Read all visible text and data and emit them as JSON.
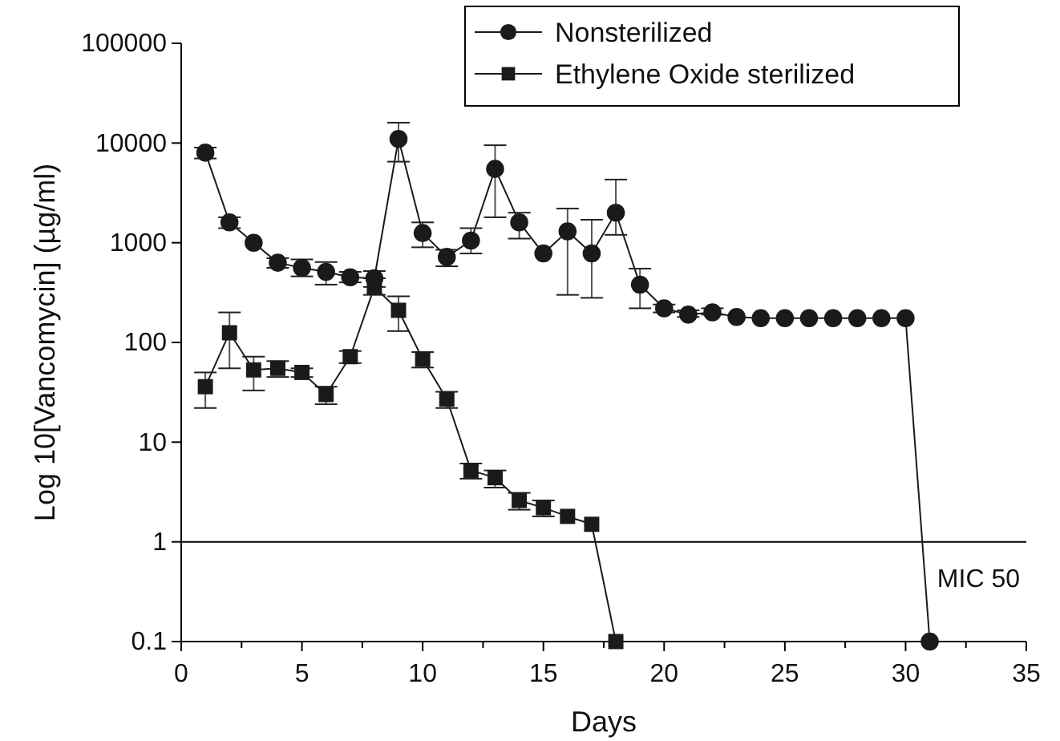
{
  "chart_data": {
    "type": "line",
    "xlabel": "Days",
    "ylabel": "Log 10[Vancomycin] (µg/ml)",
    "log": "y",
    "xlim": [
      0,
      35
    ],
    "xticks": [
      0,
      5,
      10,
      15,
      20,
      25,
      30,
      35
    ],
    "ylim": [
      0.1,
      100000
    ],
    "yticks": [
      0.1,
      1,
      10,
      100,
      1000,
      10000,
      100000
    ],
    "legend": "top right",
    "grid": false,
    "ref_lines": [
      {
        "axis": "y",
        "value": 1,
        "label": "MIC 50",
        "color": "#000000"
      }
    ],
    "series": [
      {
        "name": "Nonsterilized",
        "color": "#1a1a1a",
        "marker": "circle",
        "x": [
          1,
          2,
          3,
          4,
          5,
          6,
          7,
          8,
          9,
          10,
          11,
          12,
          13,
          14,
          15,
          16,
          17,
          18,
          19,
          20,
          21,
          22,
          23,
          24,
          25,
          26,
          27,
          28,
          29,
          30,
          31
        ],
        "values": [
          8000,
          1600,
          1000,
          630,
          560,
          510,
          450,
          440,
          11000,
          1250,
          720,
          1050,
          5500,
          1600,
          780,
          1300,
          780,
          2000,
          380,
          220,
          190,
          200,
          180,
          175,
          175,
          175,
          175,
          175,
          175,
          175,
          0.1
        ],
        "errors": [
          [
            7000,
            9000
          ],
          [
            1400,
            1800
          ],
          null,
          [
            560,
            700
          ],
          [
            460,
            680
          ],
          [
            380,
            640
          ],
          [
            400,
            510
          ],
          [
            440,
            520
          ],
          [
            6500,
            16000
          ],
          [
            900,
            1600
          ],
          [
            580,
            850
          ],
          [
            780,
            1400
          ],
          [
            1800,
            9500
          ],
          [
            1100,
            2000
          ],
          null,
          [
            300,
            2200
          ],
          [
            280,
            1700
          ],
          [
            1200,
            4300
          ],
          [
            220,
            550
          ],
          [
            200,
            240
          ],
          [
            180,
            210
          ],
          [
            190,
            220
          ],
          null,
          null,
          null,
          null,
          null,
          null,
          null,
          null,
          null
        ]
      },
      {
        "name": "Ethylene Oxide sterilized",
        "color": "#1a1a1a",
        "marker": "square",
        "x": [
          1,
          2,
          3,
          4,
          5,
          6,
          7,
          8,
          9,
          10,
          11,
          12,
          13,
          14,
          15,
          16,
          17,
          18
        ],
        "values": [
          36,
          125,
          53,
          55,
          50,
          30,
          72,
          360,
          210,
          68,
          27,
          5.2,
          4.4,
          2.6,
          2.2,
          1.8,
          1.5,
          0.1
        ],
        "errors": [
          [
            22,
            50
          ],
          [
            55,
            200
          ],
          [
            33,
            72
          ],
          [
            45,
            65
          ],
          [
            45,
            55
          ],
          [
            24,
            36
          ],
          [
            62,
            82
          ],
          [
            300,
            360
          ],
          [
            130,
            290
          ],
          [
            56,
            80
          ],
          [
            22,
            32
          ],
          [
            4.3,
            6.1
          ],
          [
            3.5,
            5.2
          ],
          [
            2.1,
            3.1
          ],
          [
            1.8,
            2.6
          ],
          null,
          null,
          null
        ]
      }
    ]
  }
}
